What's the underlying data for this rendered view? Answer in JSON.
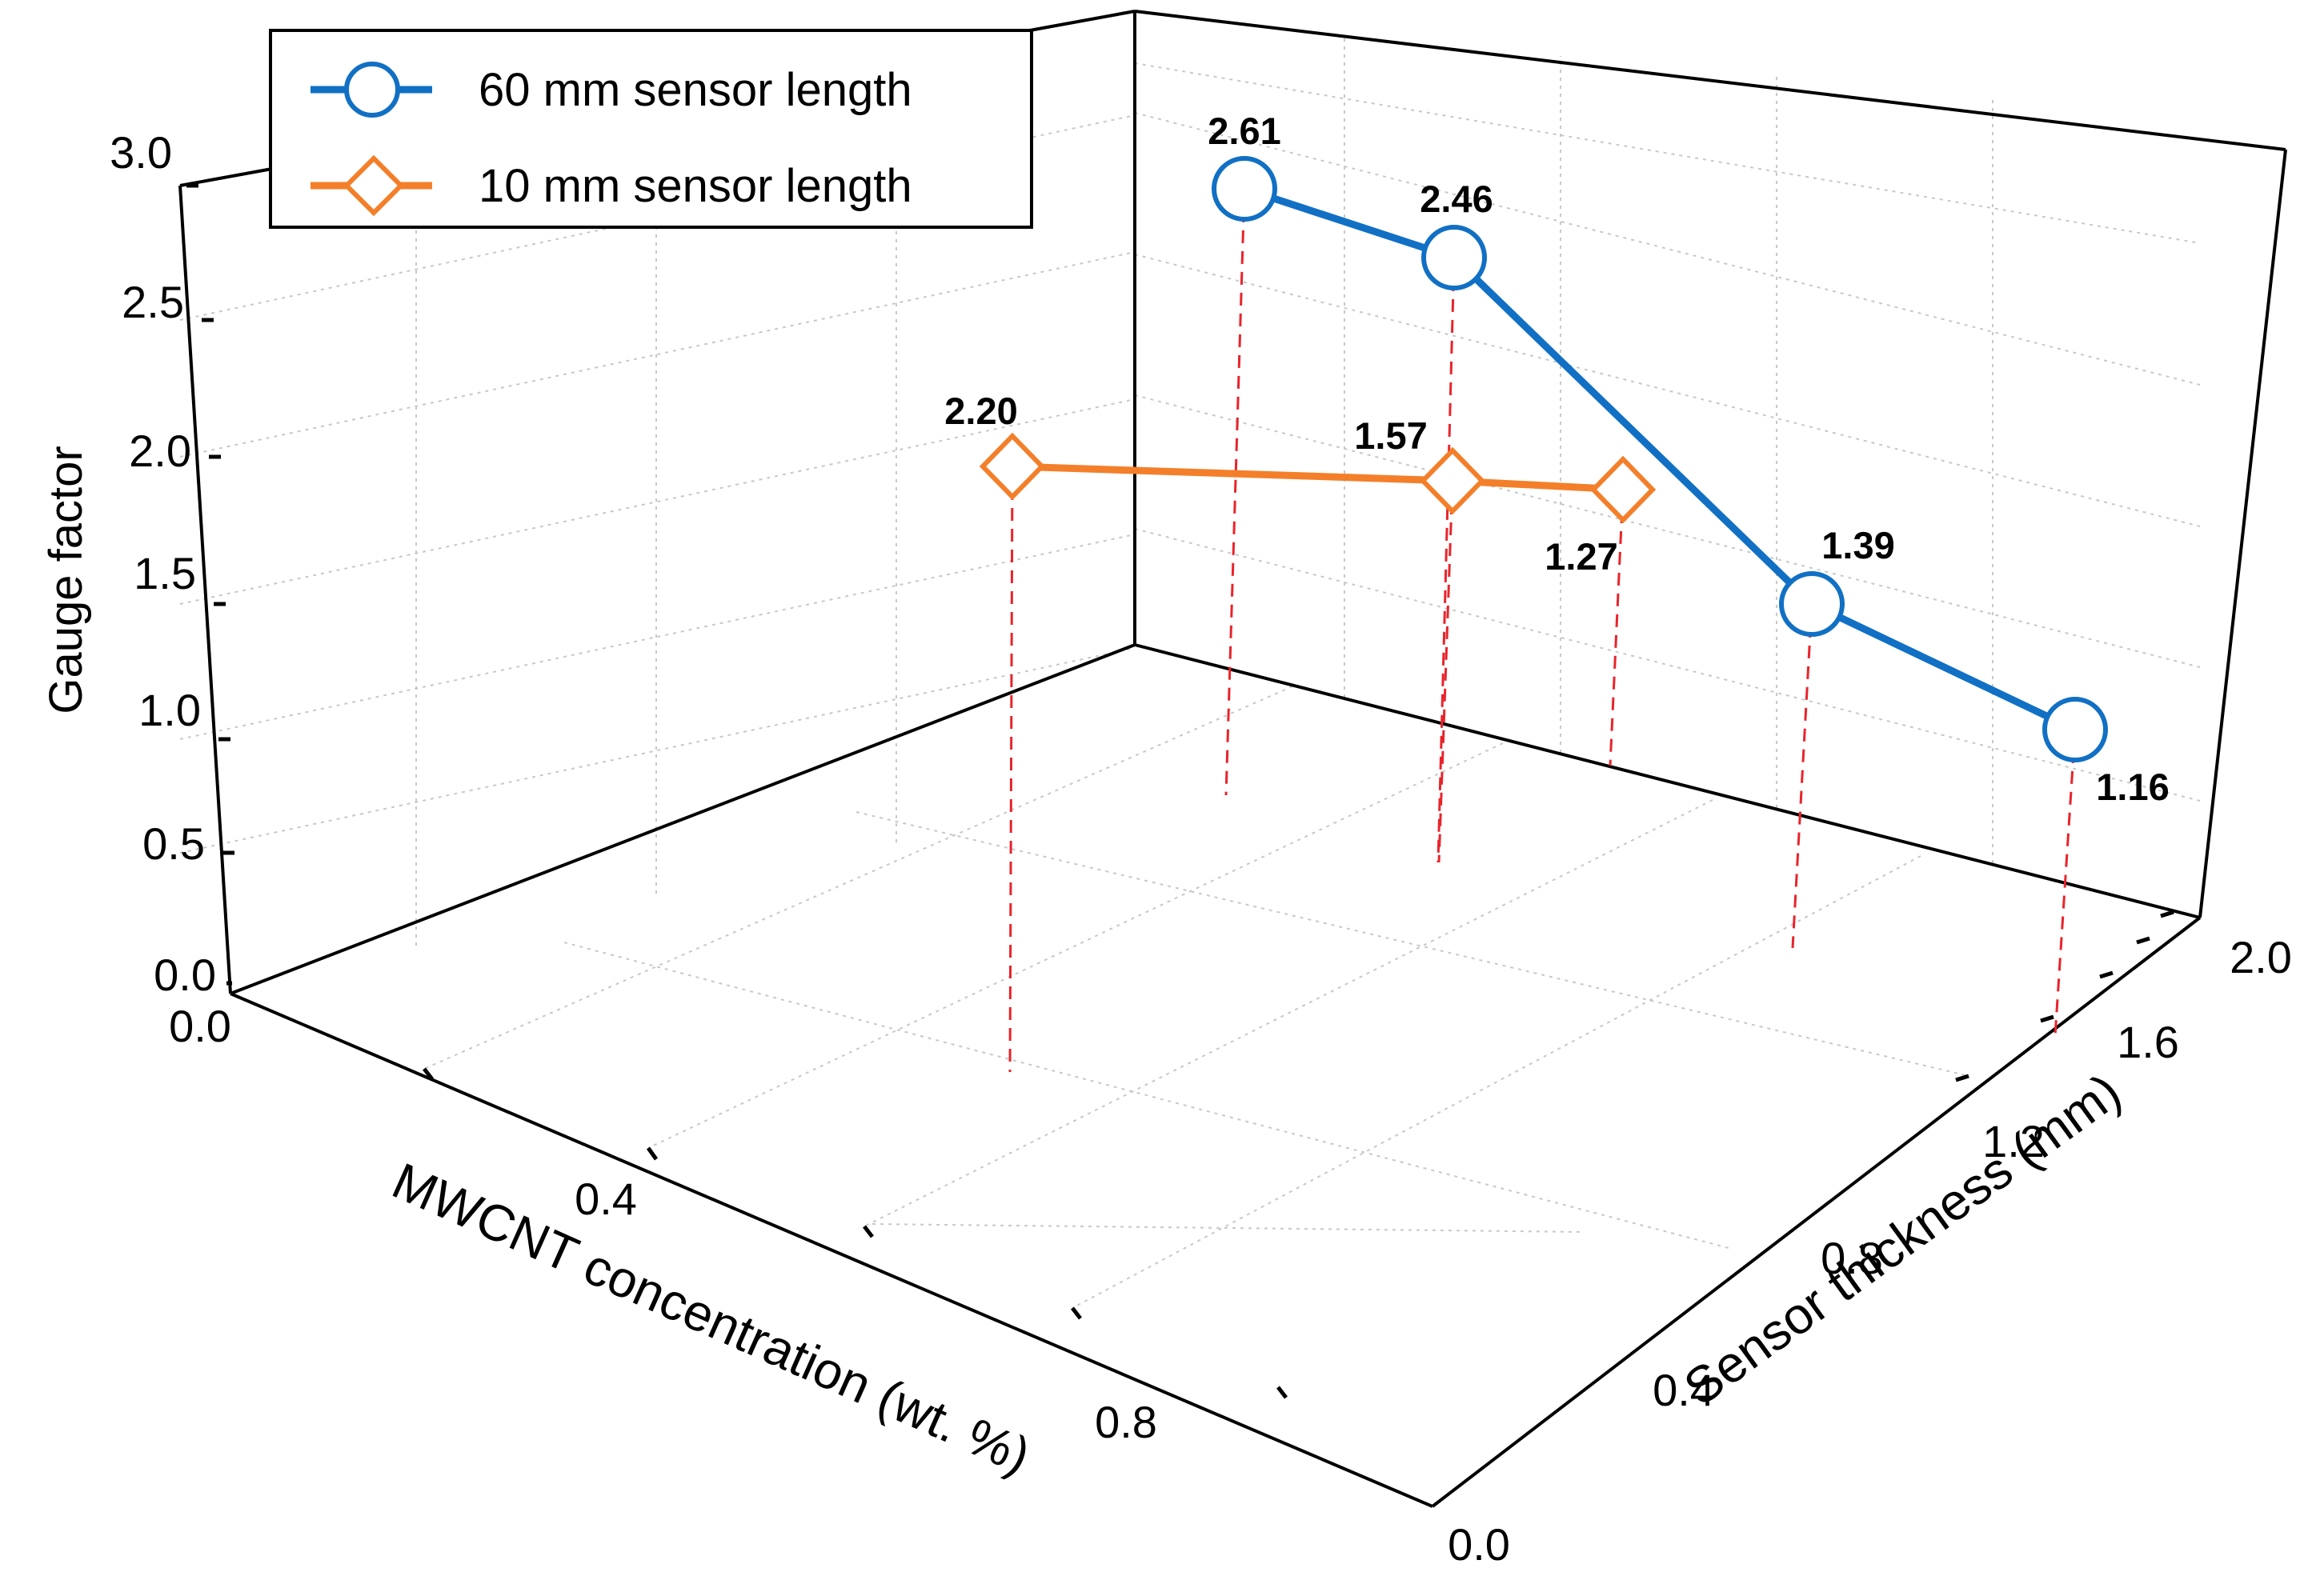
{
  "chart_data": {
    "type": "scatter3d",
    "title": "",
    "axes": {
      "x": {
        "label": "MWCNT concentration (wt. %)",
        "range": [
          0,
          1.2
        ],
        "tick_labels": [
          "0.0",
          "0.4",
          "0.8"
        ]
      },
      "y": {
        "label": "Sensor thickness (mm)",
        "range": [
          0,
          2.0
        ],
        "tick_labels": [
          "0.0",
          "0.4",
          "0.8",
          "1.2",
          "1.6",
          "2.0"
        ]
      },
      "z": {
        "label": "Gauge factor",
        "range": [
          0,
          3.0
        ],
        "tick_labels": [
          "0.0",
          "0.5",
          "1.0",
          "1.5",
          "2.0",
          "2.5",
          "3.0"
        ]
      }
    },
    "grid": true,
    "drop_lines": true,
    "legend_position": "top-left",
    "series": [
      {
        "name": "60 mm sensor length",
        "marker": "circle",
        "color": "#1170C4",
        "points": [
          {
            "label": "2.61",
            "gauge_factor": 2.61
          },
          {
            "label": "2.46",
            "gauge_factor": 2.46
          },
          {
            "label": "1.39",
            "gauge_factor": 1.39
          },
          {
            "label": "1.16",
            "gauge_factor": 1.16
          }
        ]
      },
      {
        "name": "10 mm sensor length",
        "marker": "diamond",
        "color": "#F47F2A",
        "points": [
          {
            "label": "2.20",
            "gauge_factor": 2.2
          },
          {
            "label": "1.57",
            "gauge_factor": 1.57
          },
          {
            "label": "1.27",
            "gauge_factor": 1.27
          }
        ]
      }
    ],
    "drop_line_color": "#E8242B"
  }
}
